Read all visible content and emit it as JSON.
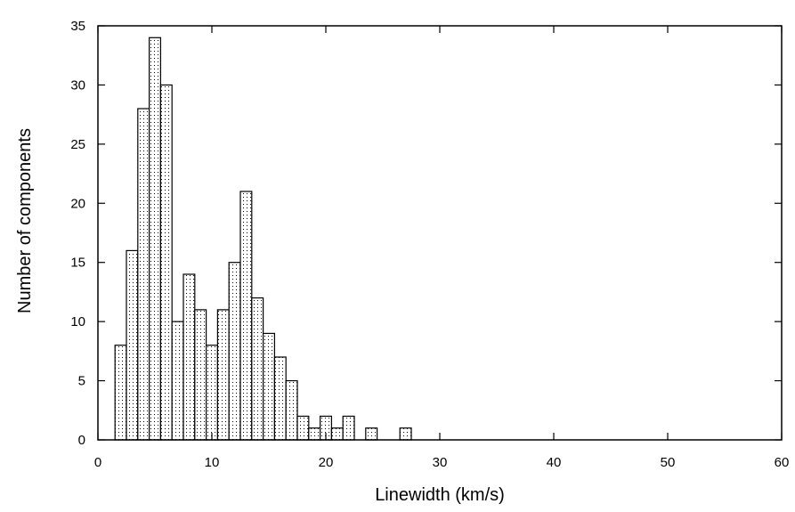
{
  "chart_data": {
    "type": "bar",
    "title": "",
    "xlabel": "Linewidth (km/s)",
    "ylabel": "Number of components",
    "xlim": [
      0,
      60
    ],
    "ylim": [
      0,
      35
    ],
    "x_ticks": [
      0,
      10,
      20,
      30,
      40,
      50,
      60
    ],
    "y_ticks": [
      0,
      5,
      10,
      15,
      20,
      25,
      30,
      35
    ],
    "bin_width": 1,
    "bins": [
      {
        "x": 2,
        "count": 8
      },
      {
        "x": 3,
        "count": 16
      },
      {
        "x": 4,
        "count": 28
      },
      {
        "x": 5,
        "count": 34
      },
      {
        "x": 6,
        "count": 30
      },
      {
        "x": 7,
        "count": 10
      },
      {
        "x": 8,
        "count": 14
      },
      {
        "x": 9,
        "count": 11
      },
      {
        "x": 10,
        "count": 8
      },
      {
        "x": 11,
        "count": 11
      },
      {
        "x": 12,
        "count": 15
      },
      {
        "x": 13,
        "count": 21
      },
      {
        "x": 14,
        "count": 12
      },
      {
        "x": 15,
        "count": 9
      },
      {
        "x": 16,
        "count": 7
      },
      {
        "x": 17,
        "count": 5
      },
      {
        "x": 18,
        "count": 2
      },
      {
        "x": 19,
        "count": 1
      },
      {
        "x": 20,
        "count": 2
      },
      {
        "x": 21,
        "count": 1
      },
      {
        "x": 22,
        "count": 2
      },
      {
        "x": 24,
        "count": 1
      },
      {
        "x": 27,
        "count": 1
      }
    ],
    "grid": false,
    "legend": "none",
    "fill": "dotted",
    "colors": {
      "bar_stroke": "#000000",
      "dot": "#000000",
      "background": "#ffffff"
    }
  }
}
